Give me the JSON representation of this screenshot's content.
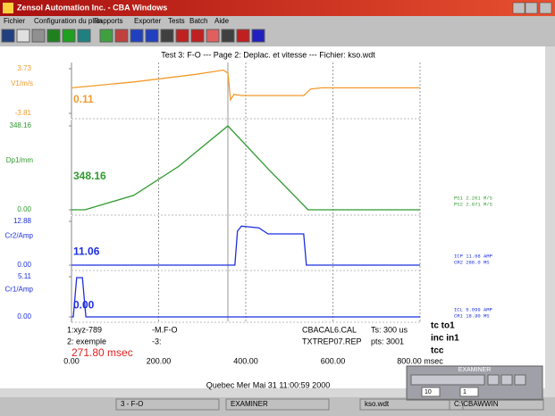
{
  "window": {
    "title": "Zensol Automation Inc. - CBA Windows",
    "menu": [
      "Fichier",
      "Configuration du plan",
      "Rapports",
      "Exporter",
      "Tests",
      "Batch",
      "Aide"
    ]
  },
  "chart_data": {
    "type": "line",
    "title": "Test 3: F-O --- Page 2: Deplac. et vitesse --- Fichier: kso.wdt",
    "xlim": [
      0,
      800
    ],
    "xticks": [
      {
        "value": 0,
        "label": "0.00"
      },
      {
        "value": 200,
        "label": "200.00"
      },
      {
        "value": 400,
        "label": "400.00"
      },
      {
        "value": 600,
        "label": "600.00"
      },
      {
        "value": 800,
        "label": "800.00 msec"
      }
    ],
    "panels": [
      {
        "label": "V1/m/s",
        "readout": 0.11,
        "color": "#f39a2c",
        "ylim": [
          -3.81,
          3.73
        ],
        "yticks": [
          -3.81,
          3.73
        ],
        "x": [
          0,
          143,
          287,
          348,
          359,
          365,
          373,
          390,
          533,
          549,
          574,
          800
        ],
        "values": [
          0.5,
          1.5,
          2.8,
          3.5,
          3.0,
          -1.5,
          -0.6,
          -0.8,
          -0.8,
          0.3,
          0.5,
          0.5
        ]
      },
      {
        "label": "Dp1/mm",
        "readout": 348.16,
        "color": "#2e9a2e",
        "ylim": [
          0,
          348.16
        ],
        "yticks": [
          {
            "value": 0,
            "label": "0.00"
          },
          348.16
        ],
        "x": [
          0,
          31,
          143,
          246,
          359,
          451,
          543,
          800
        ],
        "values": [
          0,
          0,
          60,
          180,
          348.16,
          170,
          0,
          0
        ]
      },
      {
        "label": "Cr2/Amp",
        "readout": 11.06,
        "color": "#1c2ee0",
        "ylim": [
          0,
          12.88
        ],
        "yticks": [
          {
            "value": 0,
            "label": "0.00"
          },
          12.88
        ],
        "x": [
          0,
          375,
          381,
          390,
          430,
          451,
          533,
          539,
          800
        ],
        "values": [
          0,
          0,
          10,
          11.5,
          11,
          9.2,
          9.2,
          0,
          0
        ]
      },
      {
        "label": "Cr1/Amp",
        "readout": {
          "value": 0,
          "label": "0.00"
        },
        "color": "#1c2ee0",
        "ylim": [
          0,
          5.11
        ],
        "yticks": [
          {
            "value": 0,
            "label": "0.00"
          },
          5.11
        ],
        "x": [
          0,
          4,
          12,
          25,
          33,
          800
        ],
        "values": [
          0,
          0,
          5,
          5,
          0,
          0
        ]
      }
    ]
  },
  "readouts": [
    {
      "color": "#2e9a2e",
      "lines": [
        "PS1   2.261 M/S",
        "PS2   2.071 M/S"
      ]
    },
    {
      "color": "#1c2ee0",
      "lines": [
        "ICP   11.68 AMP",
        "CR2   288.0 MS"
      ]
    },
    {
      "color": "#1c2ee0",
      "lines": [
        "ICL   5.099 AMP",
        "CR1   18.90 MS"
      ]
    }
  ],
  "tags": [
    "tc  to1",
    "inc  in1",
    "tcc"
  ],
  "info": {
    "row1": [
      "1:xyz-789",
      "-M.F-O",
      "CBACAL6.CAL",
      "Ts: 300 us"
    ],
    "row2": [
      "2: exemple",
      "-3:",
      "TXTREP07.REP",
      "pts: 3001"
    ],
    "cursor": "271.80 msec"
  },
  "footer": "Quebec   Mer Mai 31 11:00:59 2000",
  "examiner": {
    "title": "EXAMINER",
    "step": "10",
    "page": "1"
  },
  "status": [
    "3 - F-O",
    "EXAMINER",
    "kso.wdt",
    "C:\\CBAWWIN"
  ]
}
